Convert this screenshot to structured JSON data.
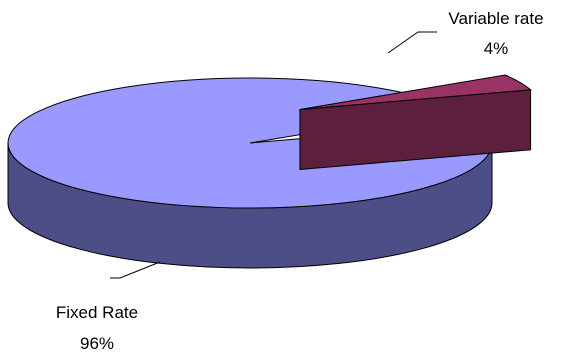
{
  "chart_data": {
    "type": "pie",
    "style": "3d",
    "slices": [
      {
        "label": "Fixed Rate",
        "value": 96,
        "value_label": "96%",
        "color": "#9999ff",
        "side_color": "#4d4d88",
        "exploded": false
      },
      {
        "label": "Variable rate",
        "value": 4,
        "value_label": "4%",
        "color": "#993366",
        "side_color": "#5c1f3d",
        "exploded": true
      }
    ],
    "legend": "none"
  }
}
